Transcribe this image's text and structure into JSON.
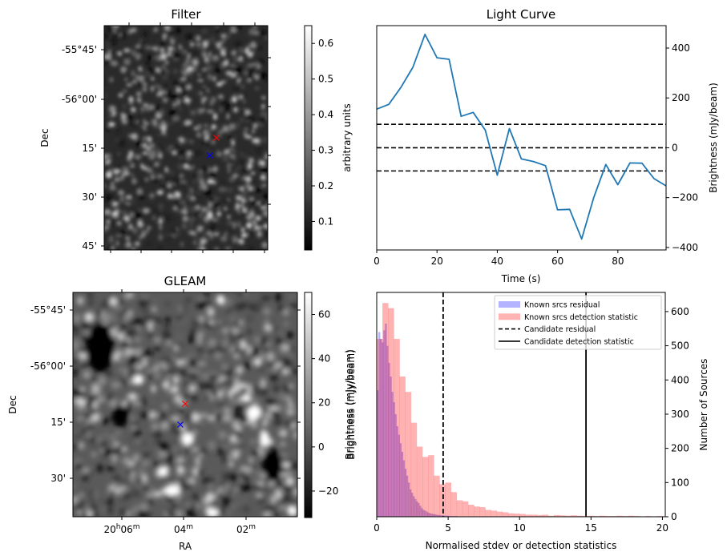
{
  "chart_data": [
    {
      "id": "filter",
      "type": "heatmap",
      "title": "Filter",
      "xlabel": "",
      "ylabel": "Dec",
      "y_tick_labels": [
        "-55°45'",
        "-56°00'",
        "15'",
        "30'",
        "45'"
      ],
      "colormap": "gray",
      "colorbar": {
        "label": "arbitrary units",
        "range": [
          0.02,
          0.65
        ],
        "ticks": [
          0.1,
          0.2,
          0.3,
          0.4,
          0.5,
          0.6
        ],
        "tick_labels": [
          "0.1",
          "0.2",
          "0.3",
          "0.4",
          "0.5",
          "0.6"
        ]
      },
      "markers": [
        {
          "name": "candidate",
          "symbol": "x",
          "color": "#ff0000"
        },
        {
          "name": "reference",
          "symbol": "x",
          "color": "#0000ff"
        }
      ]
    },
    {
      "id": "light_curve",
      "type": "line",
      "title": "Light Curve",
      "xlabel": "Time (s)",
      "ylabel": "Brightness (mJy/beam)",
      "xlim": [
        0,
        96
      ],
      "ylim": [
        -410,
        490
      ],
      "x_ticks": [
        0,
        20,
        40,
        60,
        80
      ],
      "y_ticks": [
        -400,
        -200,
        0,
        200,
        400
      ],
      "y_tick_labels": [
        "−400",
        "−200",
        "0",
        "200",
        "400"
      ],
      "y_axis_side": "right",
      "series": [
        {
          "name": "light curve",
          "color": "#1f77b4",
          "x": [
            0,
            4,
            8,
            12,
            16,
            20,
            24,
            28,
            32,
            36,
            40,
            44,
            48,
            52,
            56,
            60,
            64,
            68,
            72,
            76,
            80,
            84,
            88,
            92,
            96
          ],
          "y": [
            155,
            174,
            242,
            323,
            455,
            361,
            355,
            126,
            142,
            71,
            -110,
            77,
            -45,
            -55,
            -72,
            -249,
            -247,
            -366,
            -199,
            -67,
            -148,
            -61,
            -62,
            -124,
            -153
          ]
        }
      ],
      "hlines": [
        {
          "y": 94,
          "style": "dashed",
          "color": "#000000"
        },
        {
          "y": 0,
          "style": "dashed",
          "color": "#000000"
        },
        {
          "y": -93,
          "style": "dashed",
          "color": "#000000"
        }
      ]
    },
    {
      "id": "gleam",
      "type": "heatmap",
      "title": "GLEAM",
      "xlabel": "RA",
      "ylabel": "Dec",
      "x_tick_labels": [
        {
          "main": "20",
          "sup1": "h",
          "mid": "06",
          "sup2": "m"
        },
        {
          "main": "",
          "sup1": "",
          "mid": "04",
          "sup2": "m"
        },
        {
          "main": "",
          "sup1": "",
          "mid": "02",
          "sup2": "m"
        }
      ],
      "y_tick_labels": [
        "-55°45'",
        "-56°00'",
        "15'",
        "30'"
      ],
      "colormap": "gray",
      "colorbar": {
        "label": "Brightness (mJy/beam)",
        "range": [
          -32,
          70
        ],
        "ticks": [
          -20,
          0,
          20,
          40,
          60
        ],
        "tick_labels": [
          "−20",
          "0",
          "20",
          "40",
          "60"
        ]
      },
      "markers": [
        {
          "name": "candidate",
          "symbol": "x",
          "color": "#ff0000"
        },
        {
          "name": "reference",
          "symbol": "x",
          "color": "#0000ff"
        }
      ]
    },
    {
      "id": "histogram",
      "type": "bar",
      "title": "",
      "xlabel": "Normalised stdev or detection statistics",
      "ylabel_left": "Brightness (mJy/beam)",
      "ylabel": "Number of Sources",
      "xlim": [
        0,
        20.2
      ],
      "ylim": [
        0,
        656
      ],
      "x_ticks": [
        0,
        5,
        10,
        15,
        20
      ],
      "y_ticks": [
        0,
        100,
        200,
        300,
        400,
        500,
        600
      ],
      "y_axis_side": "right",
      "legend_position": "top-right",
      "series": [
        {
          "name": "Known srcs residual",
          "color": "#0000ff",
          "alpha": 0.3,
          "bin_start": 0,
          "bin_width": 0.115,
          "values": [
            370,
            540,
            520,
            510,
            545,
            565,
            500,
            450,
            410,
            365,
            335,
            300,
            265,
            240,
            215,
            190,
            165,
            140,
            120,
            100,
            80,
            70,
            60,
            52,
            45,
            40,
            32,
            25,
            20,
            18,
            15,
            12,
            10,
            9,
            8,
            7,
            6,
            5,
            5,
            4,
            4,
            3,
            3,
            3,
            2,
            2,
            2,
            2,
            2,
            1,
            1,
            1,
            1,
            1,
            1,
            1,
            1,
            1,
            1,
            1,
            1,
            1,
            1,
            1,
            1,
            1,
            1,
            1,
            1,
            1,
            1,
            1,
            1,
            1,
            1,
            1,
            1,
            1,
            1,
            1
          ]
        },
        {
          "name": "Known srcs detection statistic",
          "color": "#ff0000",
          "alpha": 0.3,
          "bin_start": 0,
          "bin_width": 0.4,
          "values": [
            520,
            625,
            610,
            520,
            410,
            365,
            275,
            205,
            175,
            180,
            120,
            95,
            100,
            72,
            48,
            45,
            35,
            30,
            28,
            20,
            18,
            15,
            13,
            10,
            9,
            8,
            6,
            6,
            5,
            6,
            3,
            5,
            4,
            3,
            4,
            3,
            2,
            3,
            2,
            3,
            2,
            2,
            3,
            2,
            3,
            2,
            1,
            2,
            1,
            2,
            1
          ]
        }
      ],
      "vlines": [
        {
          "name": "Candidate residual",
          "x": 4.65,
          "style": "dashed",
          "color": "#000000"
        },
        {
          "name": "Candidate detection statistic",
          "x": 14.65,
          "style": "solid",
          "color": "#000000"
        }
      ],
      "legend": [
        {
          "label": "Known srcs residual",
          "kind": "patch",
          "color": "#b3b3ff"
        },
        {
          "label": "Known srcs detection statistic",
          "kind": "patch",
          "color": "#ffb3b3"
        },
        {
          "label": "Candidate residual",
          "kind": "dashed",
          "color": "#000000"
        },
        {
          "label": "Candidate detection statistic",
          "kind": "solid",
          "color": "#000000"
        }
      ]
    }
  ]
}
